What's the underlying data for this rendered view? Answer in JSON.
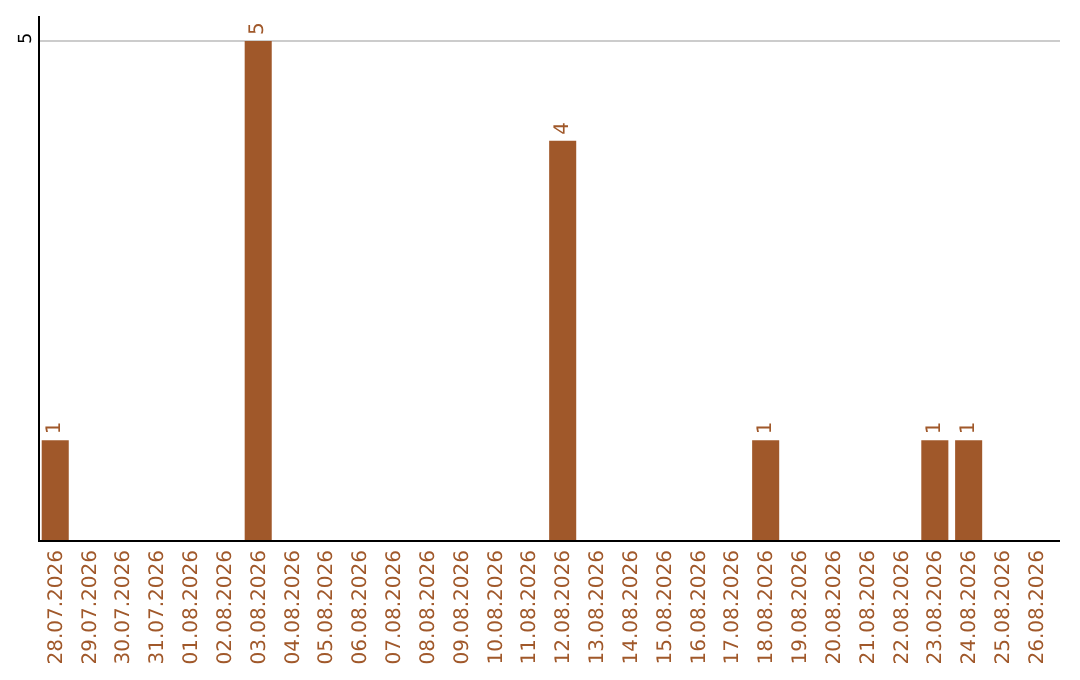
{
  "chart_data": {
    "type": "bar",
    "categories": [
      "28.07.2026",
      "29.07.2026",
      "30.07.2026",
      "31.07.2026",
      "01.08.2026",
      "02.08.2026",
      "03.08.2026",
      "04.08.2026",
      "05.08.2026",
      "06.08.2026",
      "07.08.2026",
      "08.08.2026",
      "09.08.2026",
      "10.08.2026",
      "11.08.2026",
      "12.08.2026",
      "13.08.2026",
      "14.08.2026",
      "15.08.2026",
      "16.08.2026",
      "17.08.2026",
      "18.08.2026",
      "19.08.2026",
      "20.08.2026",
      "21.08.2026",
      "22.08.2026",
      "23.08.2026",
      "24.08.2026",
      "25.08.2026",
      "26.08.2026"
    ],
    "values": [
      1,
      0,
      0,
      0,
      0,
      0,
      5,
      0,
      0,
      0,
      0,
      0,
      0,
      0,
      0,
      4,
      0,
      0,
      0,
      0,
      0,
      1,
      0,
      0,
      0,
      0,
      1,
      1,
      0,
      0
    ],
    "value_labels": [
      "1",
      null,
      null,
      null,
      null,
      null,
      "5",
      null,
      null,
      null,
      null,
      null,
      null,
      null,
      null,
      "4",
      null,
      null,
      null,
      null,
      null,
      "1",
      null,
      null,
      null,
      null,
      "1",
      "1",
      null,
      null
    ],
    "color": "#a0582a",
    "ylim": [
      0,
      5.25
    ],
    "yticks": [
      5
    ],
    "grid": "y",
    "legend": false
  }
}
